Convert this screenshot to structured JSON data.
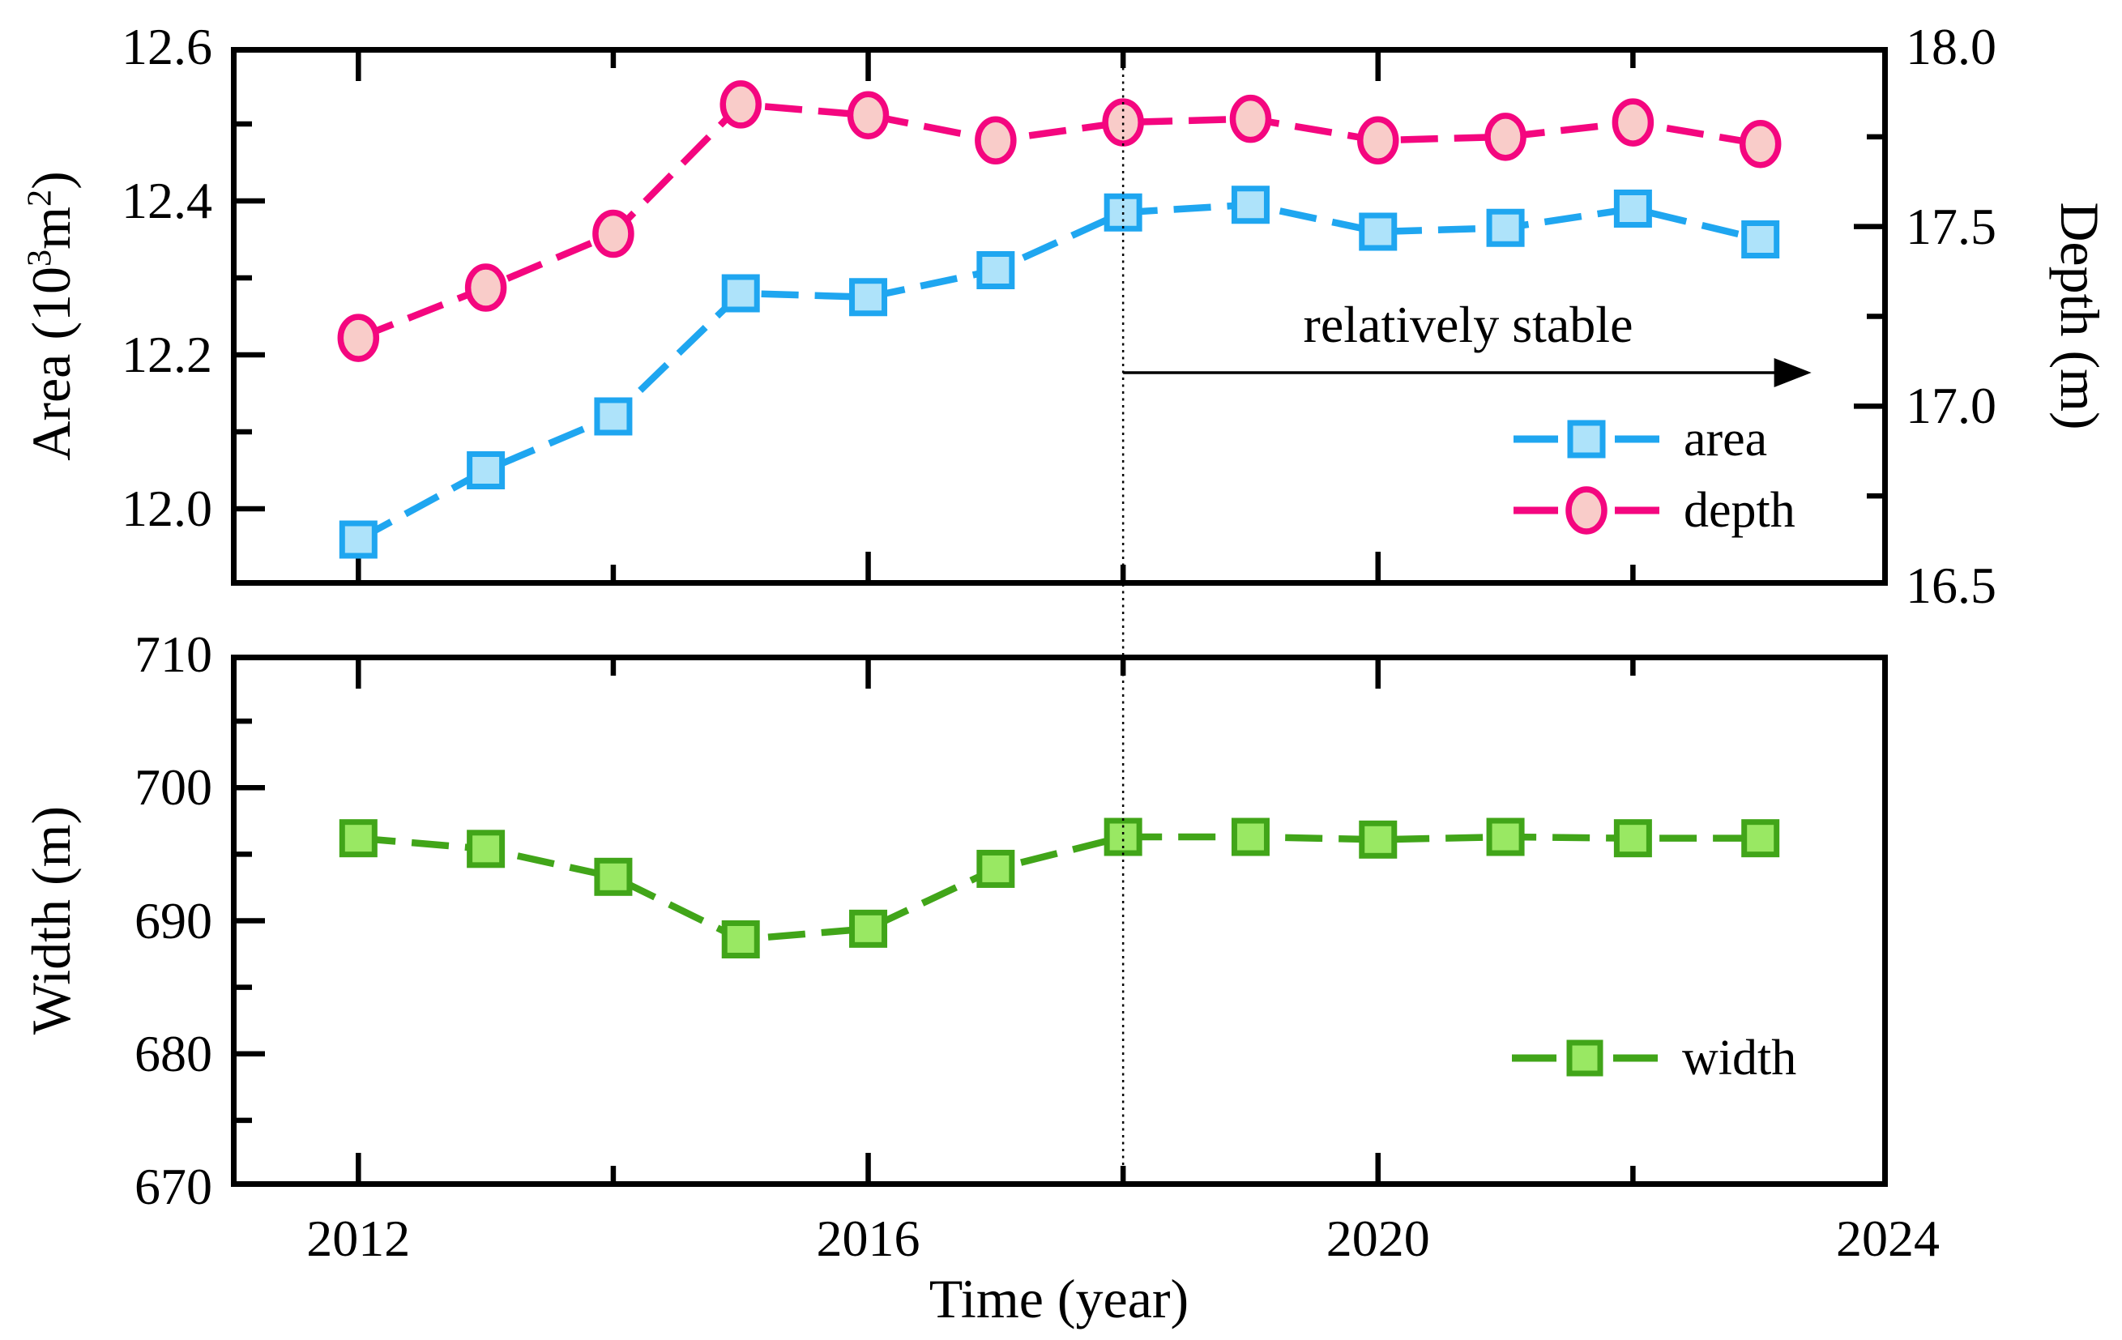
{
  "figure": {
    "background": "#ffffff",
    "x_axis_title": "Time (year)",
    "axis_titles": {
      "area_prefix": "Area (10",
      "area_sup_exp": "3",
      "area_unit": "m",
      "area_unit_exp": "2",
      "area_suffix": ")",
      "depth": "Depth (m)",
      "width": "Width (m)"
    },
    "annotation_text": "relatively stable",
    "legend_labels": {
      "area": "area",
      "depth": "depth",
      "width": "width"
    }
  },
  "chart_data": [
    {
      "id": "area-depth-panel",
      "type": "line",
      "x": [
        2012,
        2013,
        2014,
        2015,
        2016,
        2017,
        2018,
        2019,
        2020,
        2021,
        2022,
        2023
      ],
      "x_axis": {
        "label": "Time (year)",
        "range": [
          2011,
          2024
        ],
        "major_ticks": [
          2012,
          2016,
          2020,
          2024
        ],
        "minor_ticks": [
          2014,
          2018,
          2022
        ],
        "tick_labels": [
          "2012",
          "2016",
          "2020",
          "2024"
        ]
      },
      "left_axis": {
        "title": "Area (10³m²)",
        "range": [
          11.9,
          12.6
        ],
        "major_ticks": [
          12.0,
          12.2,
          12.4,
          12.6
        ],
        "minor_ticks": [
          12.1,
          12.3,
          12.5
        ],
        "tick_labels": [
          "12.0",
          "12.2",
          "12.4",
          "12.6"
        ]
      },
      "right_axis": {
        "title": "Depth (m)",
        "range": [
          16.5,
          18.0
        ],
        "major_ticks": [
          16.5,
          17.0,
          17.5,
          18.0
        ],
        "minor_ticks": [
          16.75,
          17.25,
          17.75
        ],
        "tick_labels": [
          "16.5",
          "17.0",
          "17.5",
          "18.0"
        ]
      },
      "series": [
        {
          "name": "area",
          "axis": "left",
          "marker": "square",
          "line_color": "#1FA6F0",
          "fill_color": "#AEE3FA",
          "values": [
            11.96,
            12.05,
            12.12,
            12.28,
            12.275,
            12.31,
            12.385,
            12.395,
            12.36,
            12.365,
            12.39,
            12.35
          ]
        },
        {
          "name": "depth",
          "axis": "right",
          "marker": "circle",
          "line_color": "#F4067F",
          "fill_color": "#F9CCC9",
          "values": [
            17.19,
            17.33,
            17.48,
            17.84,
            17.81,
            17.74,
            17.79,
            17.8,
            17.74,
            17.75,
            17.79,
            17.73
          ]
        }
      ],
      "annotation": {
        "text": "relatively stable",
        "vline_x": 2018,
        "arrow_from_x": 2018,
        "arrow_to_x": 2023.4
      },
      "legend_position": "inside lower right",
      "grid": false
    },
    {
      "id": "width-panel",
      "type": "line",
      "x": [
        2012,
        2013,
        2014,
        2015,
        2016,
        2017,
        2018,
        2019,
        2020,
        2021,
        2022,
        2023
      ],
      "x_axis": {
        "label": "Time (year)",
        "range": [
          2011,
          2024
        ],
        "major_ticks": [
          2012,
          2016,
          2020,
          2024
        ],
        "minor_ticks": [
          2014,
          2018,
          2022
        ],
        "tick_labels": [
          "2012",
          "2016",
          "2020",
          "2024"
        ]
      },
      "left_axis": {
        "title": "Width (m)",
        "range": [
          670,
          710
        ],
        "major_ticks": [
          670,
          680,
          690,
          700,
          710
        ],
        "minor_ticks": [
          675,
          685,
          695,
          705
        ],
        "tick_labels": [
          "670",
          "680",
          "690",
          "700",
          "710"
        ]
      },
      "series": [
        {
          "name": "width",
          "axis": "left",
          "marker": "square",
          "line_color": "#41A519",
          "fill_color": "#99E863",
          "values": [
            696.2,
            695.4,
            693.3,
            688.6,
            689.4,
            693.9,
            696.3,
            696.3,
            696.1,
            696.3,
            696.2,
            696.2
          ]
        }
      ],
      "annotation": {
        "vline_x": 2018
      },
      "legend_position": "inside lower right",
      "grid": false
    }
  ]
}
